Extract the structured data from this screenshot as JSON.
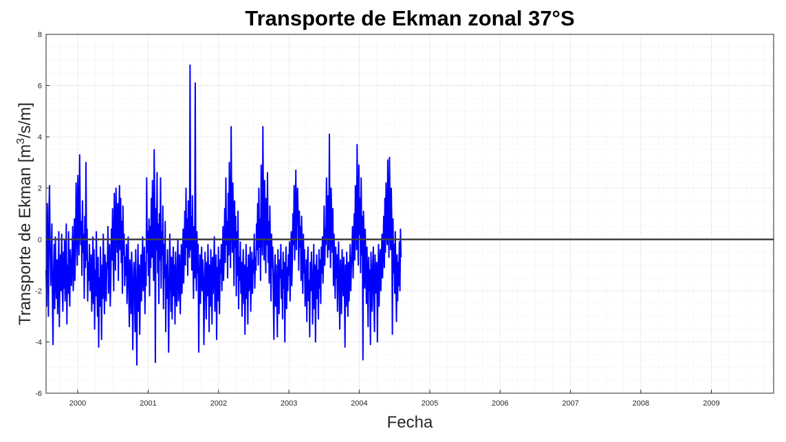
{
  "chart_data": {
    "type": "line",
    "title": "Transporte de Ekman zonal 37°S",
    "xlabel": "Fecha",
    "ylabel_main": "Transporte de Ekman [m",
    "ylabel_sup": "3",
    "ylabel_tail": "/s/m]",
    "xlim": [
      "1999-07-21",
      "2009-11-20"
    ],
    "ylim": [
      -6,
      8
    ],
    "grid": "on",
    "minor_grid": "on",
    "x_ticks": [
      "2000",
      "2001",
      "2002",
      "2003",
      "2004",
      "2005",
      "2006",
      "2007",
      "2008",
      "2009"
    ],
    "y_ticks": [
      "-6",
      "-4",
      "-2",
      "0",
      "2",
      "4",
      "6",
      "8"
    ],
    "series": [
      {
        "color": "#0000ff",
        "x_start": "1999-07-21",
        "x_step_days": 3,
        "values": [
          -1.2,
          -2.6,
          1.4,
          -0.3,
          -3.0,
          1.1,
          2.1,
          -0.4,
          -1.8,
          -0.9,
          0.6,
          -2.2,
          -4.1,
          -1.3,
          -0.2,
          -2.7,
          0.1,
          -1.4,
          -2.3,
          -0.8,
          -2.9,
          -1.6,
          0.3,
          -3.4,
          -1.1,
          -0.6,
          -2.0,
          0.2,
          -1.7,
          -2.8,
          -0.5,
          -1.9,
          0.0,
          -2.4,
          -1.3,
          0.6,
          -3.3,
          -1.0,
          -2.1,
          0.3,
          -1.5,
          -2.6,
          -0.4,
          -1.2,
          -1.8,
          -0.7,
          0.5,
          -2.0,
          -1.1,
          0.8,
          -1.6,
          -0.3,
          2.2,
          0.4,
          -1.0,
          2.5,
          0.9,
          -0.6,
          3.3,
          1.1,
          -0.2,
          0.7,
          -1.4,
          1.5,
          -0.5,
          0.2,
          -2.3,
          0.9,
          -1.1,
          3.0,
          -0.8,
          0.4,
          -2.4,
          -0.9,
          -1.6,
          -0.2,
          -2.0,
          -1.3,
          -0.6,
          -2.8,
          -1.7,
          0.1,
          -2.5,
          -0.4,
          -3.5,
          -1.2,
          -2.2,
          0.3,
          -1.8,
          -3.0,
          -0.7,
          -4.2,
          -1.5,
          -2.6,
          -0.3,
          -1.9,
          -3.9,
          -1.0,
          -2.3,
          0.2,
          -1.4,
          -2.9,
          -0.6,
          -1.8,
          -2.4,
          -0.9,
          -1.1,
          0.5,
          -2.1,
          -1.3,
          -0.2,
          -2.6,
          -1.5,
          0.4,
          -0.8,
          1.2,
          -0.3,
          -2.0,
          1.8,
          0.3,
          -1.2,
          2.0,
          0.6,
          -0.5,
          1.4,
          -1.6,
          0.9,
          2.1,
          -0.4,
          1.6,
          -0.9,
          0.7,
          -2.1,
          1.3,
          -0.6,
          0.2,
          -1.8,
          -0.7,
          -1.4,
          -0.2,
          -2.5,
          -1.1,
          0.1,
          -2.0,
          -3.4,
          -0.8,
          -1.6,
          -2.9,
          -0.5,
          -1.3,
          -4.3,
          -2.2,
          -0.9,
          -1.7,
          -3.6,
          -0.4,
          -2.6,
          -4.9,
          -1.5,
          -0.2,
          -2.8,
          -1.0,
          -3.7,
          -1.9,
          -0.6,
          -2.4,
          -1.2,
          0.1,
          -2.0,
          -1.5,
          -0.3,
          -2.9,
          -0.9,
          -1.8,
          2.4,
          -0.5,
          0.3,
          -1.4,
          0.8,
          -2.2,
          0.5,
          -1.1,
          1.6,
          -0.7,
          2.3,
          0.2,
          -1.6,
          3.5,
          0.9,
          -4.8,
          1.2,
          -0.4,
          2.6,
          -1.3,
          0.6,
          -2.5,
          1.0,
          -0.8,
          2.4,
          -1.9,
          0.3,
          -0.6,
          1.3,
          -2.7,
          -0.2,
          -1.5,
          0.7,
          -3.6,
          -1.0,
          -2.3,
          -0.4,
          -1.7,
          -4.4,
          -2.0,
          0.2,
          -1.2,
          -2.8,
          -0.7,
          -3.1,
          -1.4,
          -0.3,
          -2.2,
          -1.0,
          -3.3,
          -0.5,
          -1.8,
          -2.6,
          -0.9,
          0.0,
          -2.4,
          -1.3,
          -0.6,
          -2.9,
          -1.6,
          -0.2,
          -2.1,
          -1.1,
          0.4,
          -1.7,
          -0.5,
          1.1,
          -1.0,
          2.0,
          -0.3,
          0.8,
          -1.4,
          1.5,
          0.2,
          -0.7,
          6.8,
          -0.4,
          0.9,
          -1.2,
          1.7,
          -0.6,
          -2.3,
          0.5,
          -1.5,
          6.1,
          -0.9,
          -2.0,
          0.3,
          -1.3,
          -0.2,
          -4.4,
          -1.8,
          -0.6,
          -2.5,
          -1.1,
          -0.3,
          -2.0,
          -0.8,
          -1.5,
          -4.1,
          -2.3,
          -0.5,
          -1.7,
          -3.1,
          -0.9,
          -2.2,
          -0.2,
          -1.4,
          -3.6,
          -1.0,
          -2.6,
          -0.4,
          -1.9,
          -3.3,
          -0.7,
          -2.1,
          -1.2,
          0.1,
          -2.8,
          -1.5,
          -0.6,
          -3.9,
          -1.1,
          -2.4,
          -0.3,
          -1.7,
          -2.9,
          -0.8,
          -1.3,
          -0.2,
          -2.0,
          -1.0,
          0.5,
          -1.6,
          -0.4,
          1.2,
          -0.9,
          2.4,
          -0.2,
          0.7,
          -1.5,
          1.8,
          -0.6,
          3.0,
          0.4,
          -1.1,
          4.4,
          1.3,
          -0.5,
          2.2,
          0.6,
          -1.8,
          1.5,
          -0.3,
          0.9,
          -2.2,
          0.3,
          -1.4,
          1.1,
          -2.7,
          -0.7,
          -1.6,
          -0.1,
          -2.1,
          -0.9,
          -3.0,
          -1.3,
          -0.4,
          -2.5,
          -1.0,
          -3.7,
          -1.8,
          -0.2,
          -2.3,
          -1.1,
          -3.3,
          -0.6,
          -2.0,
          -1.4,
          -0.3,
          -2.8,
          -1.6,
          -0.5,
          -2.1,
          -0.8,
          -1.3,
          0.2,
          -1.9,
          -0.7,
          -1.2,
          0.6,
          -0.4,
          1.4,
          -1.0,
          2.0,
          -0.3,
          0.8,
          -1.6,
          2.9,
          0.5,
          -0.6,
          4.4,
          1.1,
          -0.8,
          2.3,
          0.4,
          -1.3,
          1.6,
          -0.2,
          2.6,
          -0.9,
          0.7,
          -1.7,
          1.3,
          -0.5,
          -2.4,
          0.2,
          -1.1,
          -0.3,
          -2.0,
          -3.9,
          -1.4,
          -0.6,
          -2.6,
          -1.0,
          -2.2,
          -3.8,
          -0.4,
          -1.7,
          -2.9,
          -0.8,
          -1.5,
          -0.2,
          -2.3,
          -1.2,
          -3.1,
          -0.5,
          -1.9,
          -0.9,
          -4.0,
          -1.6,
          -0.3,
          -2.7,
          -1.1,
          -2.0,
          -0.6,
          -1.4,
          -0.1,
          -2.4,
          -1.0,
          0.3,
          -1.8,
          -0.7,
          1.0,
          -0.2,
          2.1,
          -0.8,
          0.6,
          2.7,
          -0.4,
          1.4,
          2.0,
          0.8,
          -1.2,
          1.1,
          -0.3,
          0.5,
          -1.6,
          0.9,
          -0.7,
          -2.1,
          0.2,
          -1.3,
          -0.4,
          -2.6,
          -1.9,
          -0.8,
          -3.2,
          -1.1,
          -0.3,
          -2.4,
          -1.6,
          -3.8,
          -0.9,
          -2.0,
          -0.5,
          -1.4,
          -3.3,
          -1.8,
          -0.2,
          -2.7,
          -1.0,
          -4.0,
          -1.5,
          -0.6,
          -2.3,
          -1.2,
          -3.1,
          -0.4,
          -1.9,
          -0.8,
          -2.5,
          -0.3,
          -1.3,
          0.1,
          -1.7,
          -0.6,
          1.3,
          -1.0,
          0.4,
          -0.2,
          2.4,
          0.9,
          -0.7,
          1.7,
          -0.4,
          4.1,
          0.3,
          -1.1,
          2.0,
          0.7,
          -0.5,
          1.2,
          -1.8,
          0.2,
          -0.9,
          -2.3,
          -0.3,
          -1.5,
          -0.6,
          -2.8,
          -1.2,
          -0.1,
          -2.1,
          -3.5,
          -0.8,
          -1.6,
          -2.9,
          -0.4,
          -1.3,
          -2.2,
          -0.7,
          -1.9,
          -4.2,
          -1.0,
          -2.6,
          -0.5,
          -1.7,
          -3.0,
          -0.9,
          -2.4,
          -1.4,
          -0.2,
          -2.0,
          -1.1,
          -0.6,
          0.5,
          -1.5,
          -0.3,
          1.0,
          -0.8,
          2.1,
          1.3,
          -0.4,
          3.7,
          0.6,
          -1.0,
          2.9,
          0.2,
          1.6,
          -1.3,
          2.4,
          -0.6,
          0.9,
          -4.7,
          1.1,
          -0.2,
          -1.9,
          0.4,
          -0.9,
          -2.5,
          -0.3,
          -1.6,
          -3.4,
          -0.7,
          -2.0,
          -1.2,
          -4.1,
          -0.5,
          -1.8,
          -2.8,
          -1.0,
          -0.3,
          -2.3,
          -3.6,
          -0.6,
          -1.4,
          -2.1,
          -0.9,
          -4.0,
          -1.7,
          -0.2,
          -2.6,
          -1.1,
          -0.4,
          -2.0,
          -0.8,
          0.2,
          -1.5,
          -0.3,
          0.9,
          -1.1,
          1.6,
          -0.5,
          2.2,
          0.6,
          -0.2,
          3.1,
          0.8,
          -0.7,
          3.2,
          1.0,
          -0.4,
          2.0,
          0.5,
          -3.7,
          0.8,
          -1.3,
          -0.2,
          -2.1,
          0.3,
          -1.5,
          -3.2,
          -0.6,
          -2.4,
          -0.9,
          -1.8,
          -0.1,
          -2.0,
          0.4,
          -0.7
        ]
      }
    ],
    "reference_line": {
      "y": 0,
      "color": "#404040"
    }
  }
}
